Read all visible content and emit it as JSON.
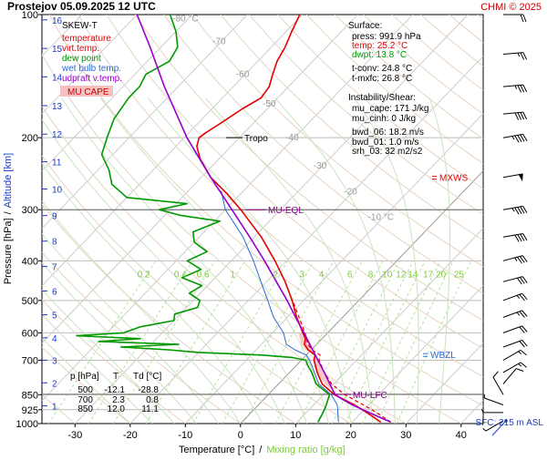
{
  "header": {
    "title": "Prostejov   05.09.2025 12 UTC",
    "copyright": "CHMI © 2025"
  },
  "chart_data": {
    "type": "line",
    "chart_kind": "Skew-T log-P diagram",
    "xlabel": "Temperature [°C]",
    "xlabel_sep": "/",
    "xlabel2": "Mixing ratio [g/kg]",
    "ylabel": "Pressure [hPa]",
    "ylabel_sep": "/",
    "ylabel2": "Altitude [km]",
    "xlim": [
      -36,
      44
    ],
    "ylim": [
      1000,
      100
    ],
    "y_scale": "log",
    "x_ticks": [
      -30,
      -20,
      -10,
      0,
      10,
      20,
      30,
      40
    ],
    "p_ticks": [
      100,
      200,
      300,
      400,
      500,
      600,
      700,
      850,
      925,
      1000
    ],
    "alt_ticks": [
      {
        "km": "1",
        "p": 905
      },
      {
        "km": "2",
        "p": 795
      },
      {
        "km": "3",
        "p": 700
      },
      {
        "km": "4",
        "p": 617
      },
      {
        "km": "5",
        "p": 542
      },
      {
        "km": "6",
        "p": 474
      },
      {
        "km": "7",
        "p": 413
      },
      {
        "km": "8",
        "p": 358
      },
      {
        "km": "9",
        "p": 310
      },
      {
        "km": "10",
        "p": 267
      },
      {
        "km": "11",
        "p": 229
      },
      {
        "km": "12",
        "p": 196
      },
      {
        "km": "13",
        "p": 167
      },
      {
        "km": "14",
        "p": 142
      },
      {
        "km": "15",
        "p": 121
      },
      {
        "km": "16",
        "p": 103
      }
    ],
    "mixing_ratio_labels": [
      "0.2",
      "0.4",
      "0.6",
      "1",
      "2",
      "3",
      "4",
      "6",
      "8",
      "10",
      "12",
      "14",
      "17",
      "20",
      "25"
    ],
    "mixing_ratio_values": [
      0.2,
      0.4,
      0.6,
      1,
      2,
      3,
      4,
      6,
      8,
      10,
      12,
      14,
      17,
      20,
      25
    ],
    "isotherm_labels": [
      {
        "text": "-80 °C",
        "t": -80,
        "p": 104
      },
      {
        "text": "-70",
        "t": -70,
        "p": 118
      },
      {
        "text": "-60",
        "t": -60,
        "p": 142
      },
      {
        "text": "-50",
        "t": -50,
        "p": 168
      },
      {
        "text": "-40",
        "t": -40,
        "p": 203
      },
      {
        "text": "-30",
        "t": -30,
        "p": 238
      },
      {
        "text": "-20",
        "t": -20,
        "p": 275
      },
      {
        "text": "-10 °C",
        "t": -10,
        "p": 318
      }
    ],
    "legend": {
      "skew_title": "SKEW-T",
      "items": [
        {
          "label": "temperature",
          "color": "#e60000"
        },
        {
          "label": "virt.temp.",
          "color": "#e60000"
        },
        {
          "label": "dew point",
          "color": "#009900"
        },
        {
          "label": "wet bulb temp.",
          "color": "#2a6ad4"
        },
        {
          "label": "udpraft v.temp.",
          "color": "#9900cc"
        }
      ],
      "cape_label": "MU CAPE"
    },
    "surface_info": {
      "title": "Surface:",
      "lines": [
        {
          "text": "press: 991.9 hPa",
          "color": "#000000"
        },
        {
          "text": "temp: 25.2 °C",
          "color": "#e60000"
        },
        {
          "text": "dwpt: 13.8 °C",
          "color": "#009900"
        },
        {
          "text": "t-conv: 24.8 °C",
          "color": "#000000"
        },
        {
          "text": "t-mxfc: 26.8 °C",
          "color": "#000000"
        }
      ]
    },
    "instability_info": {
      "title": "Instability/Shear:",
      "lines": [
        "mu_cape: 171 J/kg",
        "mu_cinh: 0 J/kg",
        "bwd_06: 18.2 m/s",
        "bwd_01: 1.0 m/s",
        "srh_03: 32 m2/s2"
      ]
    },
    "level_table": {
      "headers": [
        "p [hPa]",
        "T",
        "Td [°C]"
      ],
      "rows": [
        [
          "500",
          "-12.1",
          "-28.8"
        ],
        [
          "700",
          "2.3",
          "0.8"
        ],
        [
          "850",
          "12.0",
          "11.1"
        ]
      ]
    },
    "levels": [
      {
        "label": "Tropo",
        "p": 200,
        "color": "#000000"
      },
      {
        "label": "MU-EQL",
        "p": 300,
        "color": "#800080"
      },
      {
        "label": "MU-LFC",
        "p": 848,
        "color": "#800080"
      }
    ],
    "side_labels": [
      {
        "label": "MXWS",
        "p": 250,
        "color": "#e60000"
      },
      {
        "label": "WBZL",
        "p": 678,
        "color": "#2a6ad4"
      }
    ],
    "sfc_label": "SFC: 215 m ASL",
    "series": [
      {
        "name": "temperature",
        "color": "#e60000",
        "points": [
          [
            991.9,
            25.2
          ],
          [
            950,
            21.8
          ],
          [
            925,
            19.7
          ],
          [
            900,
            17.4
          ],
          [
            850,
            12.0
          ],
          [
            800,
            7.9
          ],
          [
            750,
            5.0
          ],
          [
            700,
            2.3
          ],
          [
            680,
            1.6
          ],
          [
            660,
            -0.6
          ],
          [
            640,
            -2.2
          ],
          [
            620,
            -3.0
          ],
          [
            600,
            -4.5
          ],
          [
            550,
            -8.3
          ],
          [
            500,
            -12.1
          ],
          [
            450,
            -16.6
          ],
          [
            400,
            -22.1
          ],
          [
            350,
            -28.7
          ],
          [
            300,
            -37.2
          ],
          [
            275,
            -42.3
          ],
          [
            250,
            -48.3
          ],
          [
            225,
            -53.5
          ],
          [
            210,
            -56.2
          ],
          [
            200,
            -57.3
          ],
          [
            195,
            -57.0
          ],
          [
            185,
            -56.0
          ],
          [
            170,
            -54.5
          ],
          [
            160,
            -53.0
          ],
          [
            150,
            -53.5
          ],
          [
            140,
            -55.0
          ],
          [
            130,
            -56.5
          ],
          [
            120,
            -57.5
          ],
          [
            110,
            -59.0
          ],
          [
            100,
            -60.5
          ]
        ]
      },
      {
        "name": "virt.temp.",
        "color": "#e60000",
        "points": [
          [
            991.9,
            27.0
          ],
          [
            950,
            23.6
          ],
          [
            925,
            21.4
          ],
          [
            900,
            19.0
          ],
          [
            850,
            13.9
          ],
          [
            800,
            9.6
          ],
          [
            750,
            6.3
          ],
          [
            700,
            3.2
          ],
          [
            680,
            2.5
          ],
          [
            660,
            0.1
          ],
          [
            640,
            -1.6
          ],
          [
            600,
            -4.1
          ],
          [
            500,
            -12.0
          ]
        ]
      },
      {
        "name": "dew point",
        "color": "#009900",
        "points": [
          [
            991.9,
            13.8
          ],
          [
            950,
            13.2
          ],
          [
            925,
            12.8
          ],
          [
            900,
            12.3
          ],
          [
            850,
            11.1
          ],
          [
            800,
            6.8
          ],
          [
            750,
            4.0
          ],
          [
            720,
            2.0
          ],
          [
            700,
            0.8
          ],
          [
            690,
            -2.0
          ],
          [
            680,
            -8.0
          ],
          [
            670,
            -20.0
          ],
          [
            660,
            -26.0
          ],
          [
            650,
            -35.0
          ],
          [
            640,
            -25.0
          ],
          [
            630,
            -40.0
          ],
          [
            620,
            -33.0
          ],
          [
            610,
            -45.0
          ],
          [
            600,
            -37.0
          ],
          [
            580,
            -35.0
          ],
          [
            560,
            -30.0
          ],
          [
            540,
            -31.0
          ],
          [
            520,
            -28.0
          ],
          [
            500,
            -28.8
          ],
          [
            480,
            -32.0
          ],
          [
            460,
            -31.0
          ],
          [
            440,
            -36.0
          ],
          [
            420,
            -34.0
          ],
          [
            400,
            -38.0
          ],
          [
            380,
            -36.0
          ],
          [
            360,
            -40.0
          ],
          [
            340,
            -42.0
          ],
          [
            320,
            -39.0
          ],
          [
            310,
            -47.0
          ],
          [
            300,
            -52.0
          ],
          [
            290,
            -48.0
          ],
          [
            280,
            -60.0
          ],
          [
            260,
            -65.0
          ],
          [
            240,
            -68.0
          ],
          [
            220,
            -72.0
          ],
          [
            200,
            -74.0
          ],
          [
            180,
            -76.0
          ],
          [
            160,
            -77.0
          ],
          [
            150,
            -77.0
          ],
          [
            140,
            -78.0
          ],
          [
            130,
            -76.0
          ],
          [
            120,
            -77.0
          ],
          [
            110,
            -80.0
          ],
          [
            100,
            -84.0
          ]
        ]
      },
      {
        "name": "wet bulb temp.",
        "color": "#2a6ad4",
        "points": [
          [
            991.9,
            17.5
          ],
          [
            950,
            16.1
          ],
          [
            925,
            15.2
          ],
          [
            900,
            14.3
          ],
          [
            850,
            11.4
          ],
          [
            800,
            7.3
          ],
          [
            750,
            4.5
          ],
          [
            700,
            1.5
          ],
          [
            680,
            0.0
          ],
          [
            660,
            -3.0
          ],
          [
            640,
            -5.5
          ],
          [
            600,
            -8.0
          ],
          [
            550,
            -12.5
          ],
          [
            500,
            -16.5
          ],
          [
            450,
            -21.0
          ],
          [
            400,
            -26.0
          ],
          [
            350,
            -32.0
          ],
          [
            300,
            -40.0
          ],
          [
            270,
            -44.0
          ]
        ]
      },
      {
        "name": "udpraft v.temp.",
        "color": "#9900cc",
        "points": [
          [
            991.9,
            27.0
          ],
          [
            950,
            22.5
          ],
          [
            925,
            19.8
          ],
          [
            900,
            17.0
          ],
          [
            870,
            14.0
          ],
          [
            848,
            12.0
          ],
          [
            800,
            9.3
          ],
          [
            750,
            6.3
          ],
          [
            700,
            3.0
          ],
          [
            650,
            -0.5
          ],
          [
            600,
            -4.3
          ],
          [
            550,
            -8.5
          ],
          [
            500,
            -13.0
          ],
          [
            450,
            -18.2
          ],
          [
            400,
            -24.0
          ],
          [
            350,
            -30.8
          ],
          [
            300,
            -38.8
          ],
          [
            250,
            -48.3
          ],
          [
            200,
            -59.5
          ],
          [
            150,
            -72.5
          ],
          [
            120,
            -82.0
          ],
          [
            100,
            -90.0
          ]
        ]
      }
    ],
    "wind_barbs": [
      {
        "p": 985,
        "dir": 60,
        "speed": 5
      },
      {
        "p": 940,
        "dir": 90,
        "speed": 5
      },
      {
        "p": 900,
        "dir": 110,
        "speed": 5
      },
      {
        "p": 850,
        "dir": 150,
        "speed": 10
      },
      {
        "p": 800,
        "dir": 220,
        "speed": 10
      },
      {
        "p": 750,
        "dir": 240,
        "speed": 15
      },
      {
        "p": 700,
        "dir": 240,
        "speed": 15
      },
      {
        "p": 650,
        "dir": 250,
        "speed": 20
      },
      {
        "p": 600,
        "dir": 250,
        "speed": 20
      },
      {
        "p": 550,
        "dir": 250,
        "speed": 25
      },
      {
        "p": 500,
        "dir": 250,
        "speed": 25
      },
      {
        "p": 450,
        "dir": 255,
        "speed": 30
      },
      {
        "p": 400,
        "dir": 255,
        "speed": 35
      },
      {
        "p": 350,
        "dir": 260,
        "speed": 40
      },
      {
        "p": 300,
        "dir": 260,
        "speed": 45
      },
      {
        "p": 250,
        "dir": 260,
        "speed": 50
      },
      {
        "p": 200,
        "dir": 260,
        "speed": 45
      },
      {
        "p": 175,
        "dir": 265,
        "speed": 40
      },
      {
        "p": 150,
        "dir": 265,
        "speed": 35
      },
      {
        "p": 125,
        "dir": 265,
        "speed": 25
      },
      {
        "p": 100,
        "dir": 270,
        "speed": 20
      }
    ]
  }
}
